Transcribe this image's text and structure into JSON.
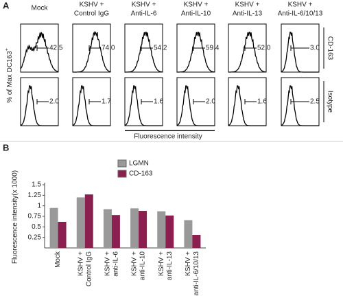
{
  "panel_a": {
    "label": "A",
    "columns": [
      [
        "Mock"
      ],
      [
        "KSHV +",
        "Control IgG"
      ],
      [
        "KSHV +",
        "Anti-IL-6"
      ],
      [
        "KSHV +",
        "Anti-IL-10"
      ],
      [
        "KSHV +",
        "Anti-IL-13"
      ],
      [
        "KSHV +",
        "Anti-IL-6/10/13"
      ]
    ],
    "rows": [
      {
        "label": "CD-163",
        "values": [
          "42.5",
          "74.0",
          "54.2",
          "59.4",
          "52.0",
          "3.0"
        ]
      },
      {
        "label": "Isotype",
        "values": [
          "2.0",
          "1.7",
          "1.6",
          "2.0",
          "1.6",
          "2.5"
        ]
      }
    ],
    "y_label": "% of Max DC163",
    "y_label_sup": "+",
    "x_label": "Fluorescence intensity"
  },
  "panel_b": {
    "label": "B",
    "chart_data": {
      "type": "bar",
      "y_label": "Fluorescence intensity(x 1000)",
      "categories": [
        [
          "Mock"
        ],
        [
          "KSHV +",
          "Control IgG"
        ],
        [
          "KSHV +",
          "anti-IL-6"
        ],
        [
          "KSHV +",
          "anti-IL-10"
        ],
        [
          "KSHV +",
          "anti-IL-13"
        ],
        [
          "KSHV +",
          "anti-IL-6/10/13"
        ]
      ],
      "series": [
        {
          "name": "LGMN",
          "color": "#999999",
          "values": [
            0.95,
            1.2,
            0.92,
            0.94,
            0.87,
            0.66
          ]
        },
        {
          "name": "CD-163",
          "color": "#8b1f4f",
          "values": [
            0.62,
            1.27,
            0.78,
            0.88,
            0.77,
            0.31
          ]
        }
      ],
      "ylim": [
        0,
        1.5
      ],
      "yticks": [
        0.25,
        0.5,
        0.75,
        1,
        1.25,
        1.5
      ]
    }
  }
}
